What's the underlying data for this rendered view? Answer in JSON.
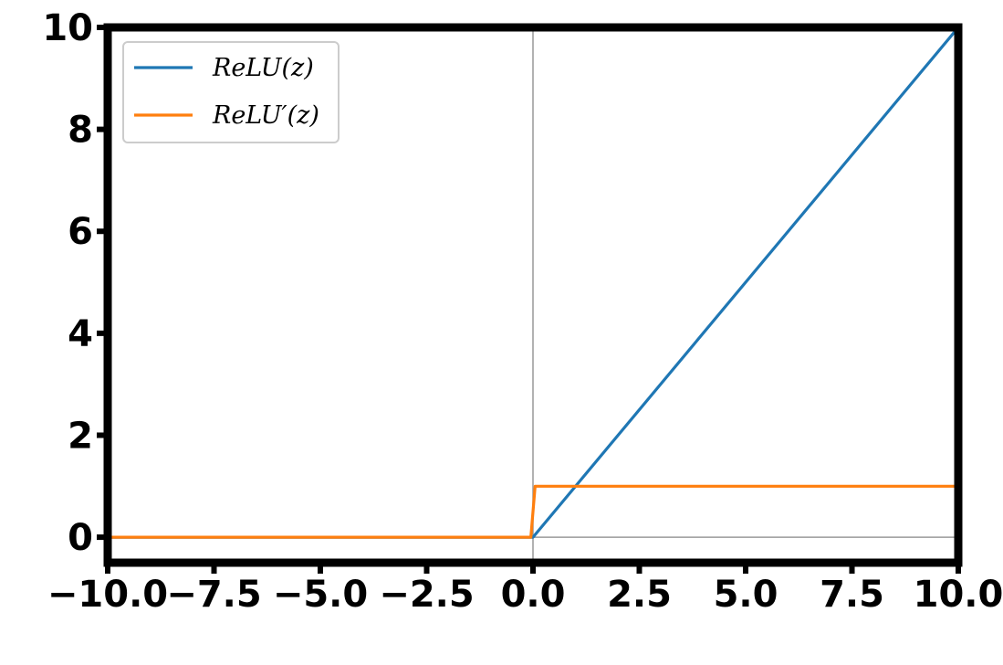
{
  "chart_data": {
    "type": "line",
    "xlabel": "",
    "ylabel": "",
    "xlim": [
      -10.0,
      10.0
    ],
    "ylim": [
      -0.5,
      10.0
    ],
    "xticks": [
      -10.0,
      -7.5,
      -5.0,
      -2.5,
      0.0,
      2.5,
      5.0,
      7.5,
      10.0
    ],
    "yticks": [
      0,
      2,
      4,
      6,
      8,
      10
    ],
    "grid": false,
    "reference_lines": [
      {
        "orientation": "vertical",
        "value": 0,
        "color": "#999999"
      },
      {
        "orientation": "horizontal",
        "value": 0,
        "color": "#999999"
      }
    ],
    "legend": {
      "position": "top-left"
    },
    "series": [
      {
        "name": "ReLU(z)",
        "color": "#1f77b4",
        "x": [
          -10,
          0,
          10
        ],
        "y": [
          0,
          0,
          10
        ]
      },
      {
        "name": "ReLU′(z)",
        "color": "#ff7f0e",
        "x": [
          -10,
          -0.05,
          0.05,
          10
        ],
        "y": [
          0,
          0,
          1,
          1
        ]
      }
    ]
  }
}
